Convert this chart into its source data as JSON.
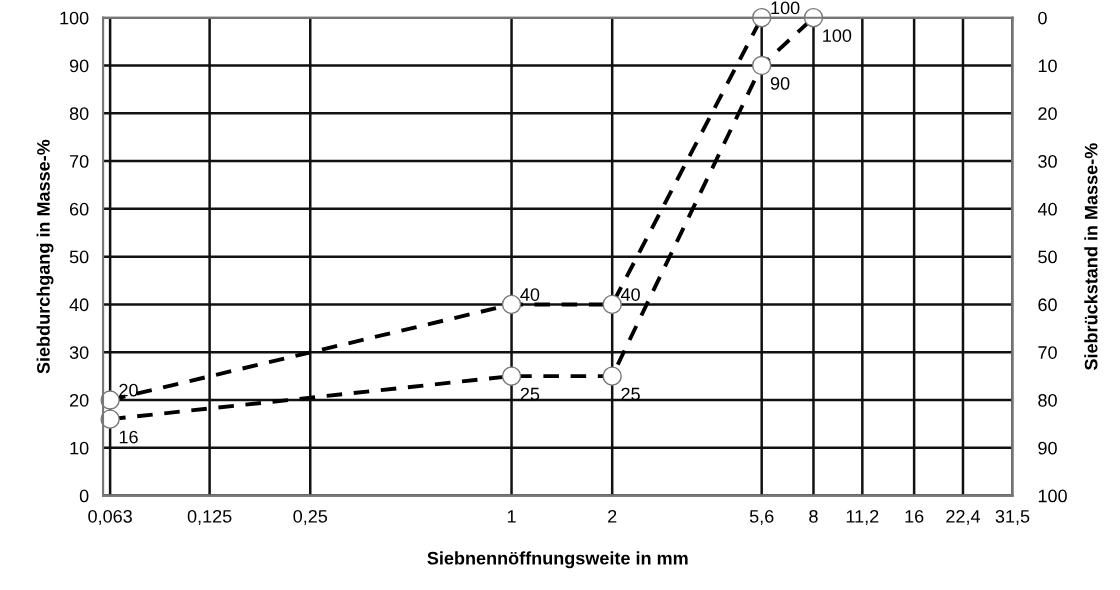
{
  "chart_data": {
    "type": "line",
    "xlabel": "Siebnennöffnungsweite in mm",
    "ylabel": "Siebdurchgang in Masse-%",
    "y2label": "Siebrückstand in Masse-%",
    "log": "x",
    "xlim": [
      0.06,
      31.5
    ],
    "xticks": [
      {
        "value": 0.063,
        "label": "0,063"
      },
      {
        "value": 0.125,
        "label": "0,125"
      },
      {
        "value": 0.25,
        "label": "0,25"
      },
      1,
      2,
      {
        "value": 5.6,
        "label": "5,6"
      },
      8,
      {
        "value": 11.2,
        "label": "11,2"
      },
      16,
      {
        "value": 22.4,
        "label": "22,4"
      },
      {
        "value": 31.5,
        "label": "31,5"
      }
    ],
    "ylim": [
      0,
      100
    ],
    "yticks": [
      0,
      10,
      20,
      30,
      40,
      50,
      60,
      70,
      80,
      90,
      100
    ],
    "y2lim": [
      100,
      0
    ],
    "y2ticks": [
      0,
      10,
      20,
      30,
      40,
      50,
      60,
      70,
      80,
      90,
      100
    ],
    "grid": true,
    "marker": "circle",
    "line_style": "dashed",
    "data_labels": true,
    "series": [
      {
        "color": "#000000",
        "x": [
          0.063,
          1,
          2,
          5.6
        ],
        "values": [
          20,
          40,
          40,
          100
        ]
      },
      {
        "color": "#000000",
        "x": [
          0.063,
          1,
          2,
          5.6,
          8
        ],
        "values": [
          16,
          25,
          25,
          90,
          100
        ]
      }
    ]
  }
}
